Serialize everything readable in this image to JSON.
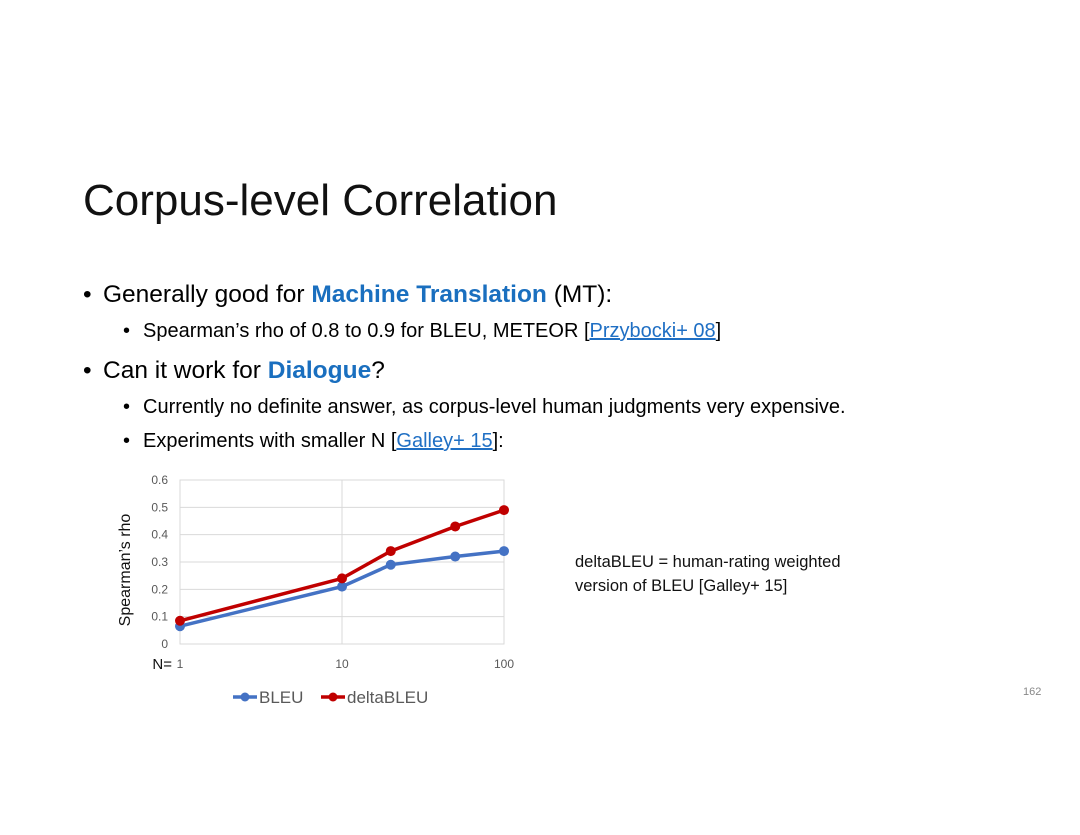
{
  "slide": {
    "title": "Corpus-level Correlation",
    "page_number": "162",
    "bullets": {
      "b1": {
        "pre": "Generally good for ",
        "hl": "Machine Translation",
        "post": " (MT):"
      },
      "b1a": {
        "pre": "Spearman’s rho of 0.8 to 0.9 for BLEU, METEOR [",
        "link": "Przybocki+ 08",
        "post": "]"
      },
      "b2": {
        "pre": "Can it work for ",
        "hl": "Dialogue",
        "post": "?"
      },
      "b2a": {
        "text": "Currently no definite answer, as corpus-level human judgments very expensive."
      },
      "b2b": {
        "pre": "Experiments with smaller N [",
        "link": "Galley+ 15",
        "post": "]:"
      }
    },
    "note": {
      "line1": "deltaBLEU = human-rating weighted",
      "line2": "version of BLEU [Galley+ 15]"
    }
  },
  "chart_data": {
    "type": "line",
    "x": [
      1,
      10,
      20,
      50,
      100
    ],
    "xscale": "log",
    "xticks": [
      "1",
      "10",
      "100"
    ],
    "x_prefix_label": "N=",
    "ylabel": "Spearman’s rho",
    "ylim": [
      0,
      0.6
    ],
    "yticks": [
      "0",
      "0.1",
      "0.2",
      "0.3",
      "0.4",
      "0.5",
      "0.6"
    ],
    "grid": true,
    "legend": "bottom",
    "series": [
      {
        "name": "BLEU",
        "color": "#4472c4",
        "values": [
          0.065,
          0.21,
          0.29,
          0.32,
          0.34
        ]
      },
      {
        "name": "deltaBLEU",
        "color": "#c00000",
        "values": [
          0.085,
          0.24,
          0.34,
          0.43,
          0.49
        ]
      }
    ]
  }
}
